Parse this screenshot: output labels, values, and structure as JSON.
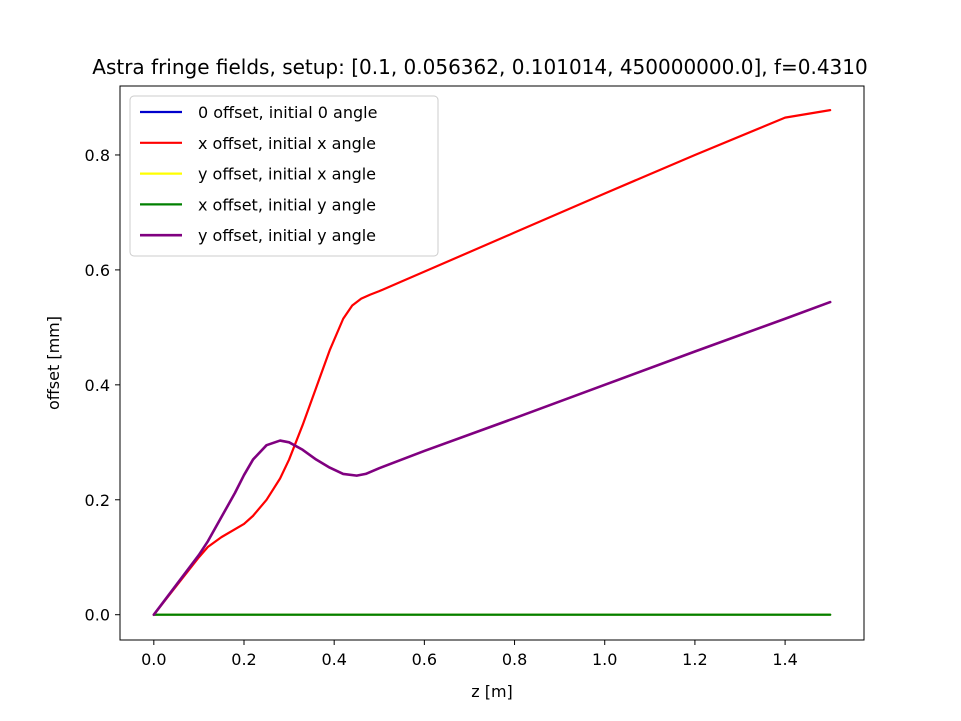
{
  "chart_data": {
    "type": "line",
    "title": "Astra fringe fields, setup: [0.1, 0.056362, 0.101014, 450000000.0], f=0.4310",
    "xlabel": "z [m]",
    "ylabel": "offset [mm]",
    "xlim": [
      -0.075,
      1.575
    ],
    "ylim": [
      -0.044,
      0.92
    ],
    "xticks": [
      0.0,
      0.2,
      0.4,
      0.6,
      0.8,
      1.0,
      1.2,
      1.4
    ],
    "xtick_labels": [
      "0.0",
      "0.2",
      "0.4",
      "0.6",
      "0.8",
      "1.0",
      "1.2",
      "1.4"
    ],
    "yticks": [
      0.0,
      0.2,
      0.4,
      0.6,
      0.8
    ],
    "ytick_labels": [
      "0.0",
      "0.2",
      "0.4",
      "0.6",
      "0.8"
    ],
    "grid": false,
    "legend_position": "upper-left",
    "series": [
      {
        "name": "0 offset, initial 0 angle",
        "color": "#0000cc",
        "x": [
          0.0,
          1.5
        ],
        "y": [
          0.0,
          0.0
        ]
      },
      {
        "name": "x offset, initial x angle",
        "color": "#ff0000",
        "x": [
          0.0,
          0.05,
          0.1,
          0.12,
          0.15,
          0.2,
          0.22,
          0.25,
          0.28,
          0.3,
          0.33,
          0.36,
          0.39,
          0.42,
          0.44,
          0.46,
          0.48,
          0.5,
          0.55,
          0.6,
          0.8,
          1.0,
          1.2,
          1.4,
          1.5
        ],
        "y": [
          0.0,
          0.05,
          0.1,
          0.118,
          0.135,
          0.158,
          0.172,
          0.2,
          0.237,
          0.27,
          0.33,
          0.395,
          0.46,
          0.515,
          0.538,
          0.55,
          0.557,
          0.563,
          0.58,
          0.597,
          0.665,
          0.733,
          0.8,
          0.865,
          0.878
        ]
      },
      {
        "name": "y offset, initial x angle",
        "color": "#ffff00",
        "x": [
          0.0,
          1.5
        ],
        "y": [
          0.0,
          0.0
        ]
      },
      {
        "name": "x offset, initial y angle",
        "color": "#008000",
        "x": [
          0.0,
          1.5
        ],
        "y": [
          0.0,
          0.0
        ]
      },
      {
        "name": "y offset, initial y angle",
        "color": "#800080",
        "x": [
          0.0,
          0.05,
          0.1,
          0.12,
          0.15,
          0.18,
          0.2,
          0.22,
          0.25,
          0.28,
          0.3,
          0.33,
          0.36,
          0.39,
          0.42,
          0.45,
          0.47,
          0.5,
          0.6,
          0.8,
          1.0,
          1.2,
          1.4,
          1.5
        ],
        "y": [
          0.0,
          0.052,
          0.104,
          0.128,
          0.17,
          0.212,
          0.243,
          0.27,
          0.295,
          0.303,
          0.3,
          0.287,
          0.27,
          0.256,
          0.245,
          0.242,
          0.245,
          0.255,
          0.285,
          0.342,
          0.4,
          0.458,
          0.515,
          0.544
        ]
      }
    ]
  }
}
